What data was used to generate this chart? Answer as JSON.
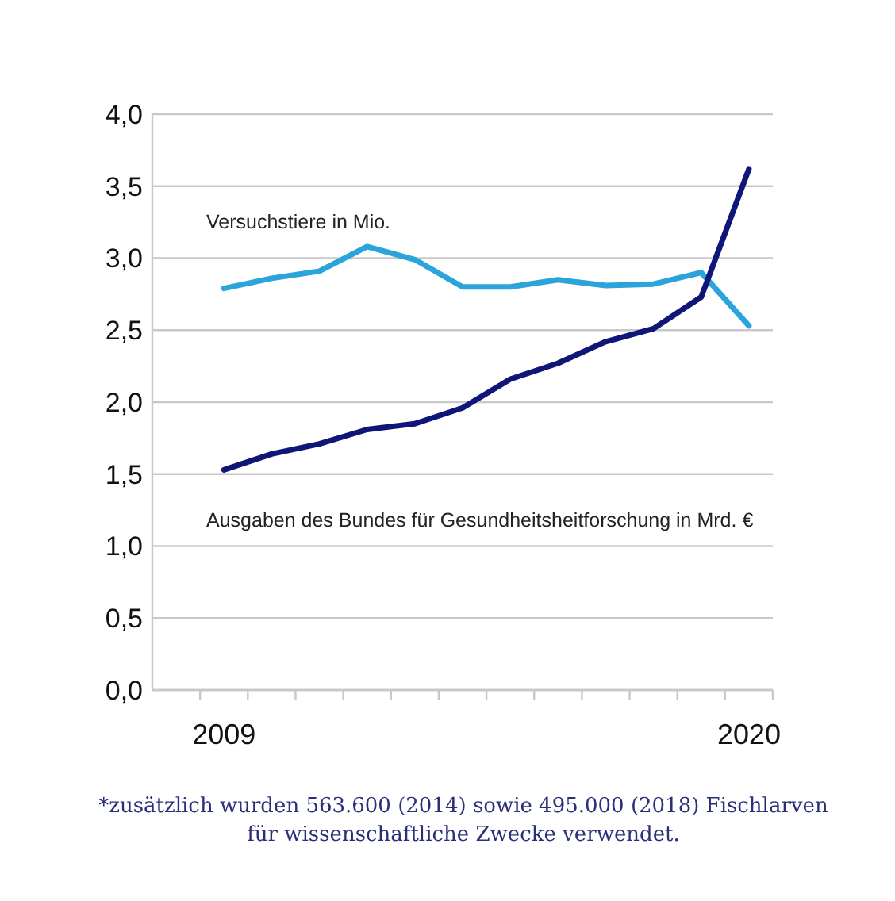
{
  "chart_data": {
    "type": "line",
    "x": [
      2009,
      2010,
      2011,
      2012,
      2013,
      2014,
      2015,
      2016,
      2017,
      2018,
      2019,
      2020
    ],
    "series": [
      {
        "name": "Versuchstiere in Mio.",
        "color": "#2ba4db",
        "values": [
          2.79,
          2.86,
          2.91,
          3.08,
          2.99,
          2.8,
          2.8,
          2.85,
          2.81,
          2.82,
          2.9,
          2.53
        ]
      },
      {
        "name": "Ausgaben des Bundes für Gesundheitsheitforschung in Mrd. €",
        "color": "#0f1678",
        "values": [
          1.53,
          1.64,
          1.71,
          1.81,
          1.85,
          1.96,
          2.16,
          2.27,
          2.42,
          2.51,
          2.73,
          3.62
        ]
      }
    ],
    "xlim": [
      2007.5,
      2020.5
    ],
    "xticks": [
      {
        "value": 2008.5,
        "label": null
      },
      {
        "value": 2009,
        "label": "2009"
      },
      {
        "value": 2009.5,
        "label": null
      },
      {
        "value": 2010.5,
        "label": null
      },
      {
        "value": 2011.5,
        "label": null
      },
      {
        "value": 2012.5,
        "label": null
      },
      {
        "value": 2013.5,
        "label": null
      },
      {
        "value": 2014.5,
        "label": null
      },
      {
        "value": 2015.5,
        "label": null
      },
      {
        "value": 2016.5,
        "label": null
      },
      {
        "value": 2017.5,
        "label": null
      },
      {
        "value": 2018.5,
        "label": null
      },
      {
        "value": 2019.5,
        "label": null
      },
      {
        "value": 2020,
        "label": "2020"
      },
      {
        "value": 2020.5,
        "label": null
      }
    ],
    "ylim": [
      0,
      4
    ],
    "yticks": [
      {
        "value": 0,
        "label": "0,0"
      },
      {
        "value": 0.5,
        "label": "0,5"
      },
      {
        "value": 1,
        "label": "1,0"
      },
      {
        "value": 1.5,
        "label": "1,5"
      },
      {
        "value": 2,
        "label": "2,0"
      },
      {
        "value": 2.5,
        "label": "2,5"
      },
      {
        "value": 3,
        "label": "3,0"
      },
      {
        "value": 3.5,
        "label": "3,5"
      },
      {
        "value": 4,
        "label": "4,0"
      }
    ],
    "grid": "y",
    "legend": false,
    "annotations": [
      "*zusätzlich wurden 563.600 (2014) sowie 495.000 (2018) Fischlarven für wissenschaftliche Zwecke verwendet."
    ]
  }
}
